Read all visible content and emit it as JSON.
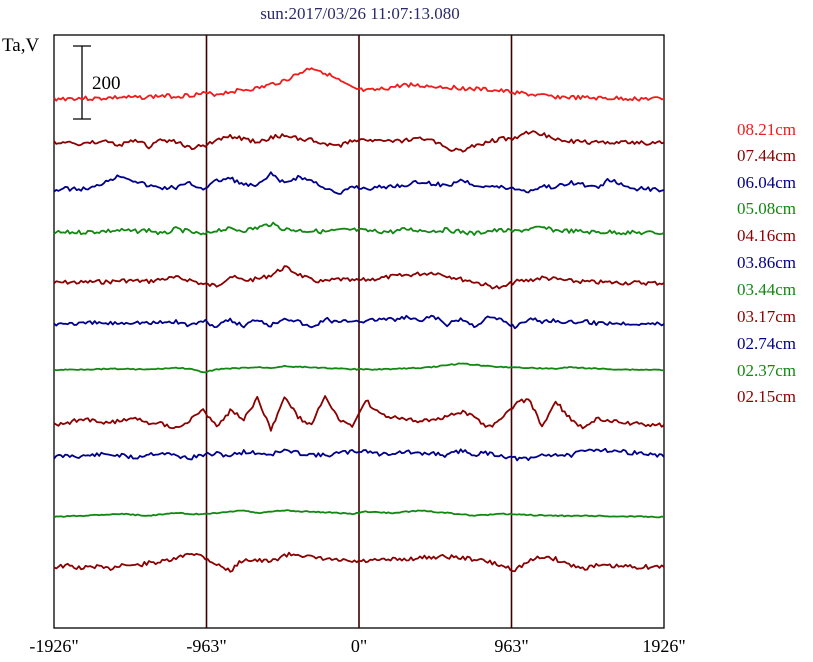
{
  "chart_data": {
    "type": "line",
    "title": "sun:2017/03/26 11:07:13.080",
    "ylabel": "Ta,V",
    "scale_bar_label": "200",
    "scale_bar_value": 200,
    "x_tick_labels": [
      "-1926\"",
      "-963\"",
      "0\"",
      "963\"",
      "1926\""
    ],
    "x_tick_values": [
      -1926,
      -963,
      0,
      963,
      1926
    ],
    "xlim": [
      -1926,
      1926
    ],
    "vertical_marker_lines": [
      -963,
      0,
      963
    ],
    "grid": false,
    "legend_position": "right",
    "series": [
      {
        "name": "08.21cm",
        "color": "#ee1c1c",
        "waveform": "spiky",
        "values": [
          0,
          2,
          3,
          1,
          4,
          6,
          5,
          8,
          12,
          10,
          15,
          20,
          18,
          28,
          35,
          40,
          55,
          70,
          95,
          120,
          100,
          70,
          40,
          30,
          35,
          45,
          55,
          50,
          48,
          45,
          42,
          38,
          35,
          30,
          25,
          18,
          12,
          8,
          6,
          4,
          3,
          2,
          2,
          1,
          1,
          0
        ]
      },
      {
        "name": "07.44cm",
        "color": "#8b0000",
        "waveform": "spiky",
        "values": [
          0,
          1,
          -3,
          2,
          5,
          -8,
          10,
          -15,
          12,
          5,
          -20,
          -10,
          10,
          25,
          15,
          5,
          20,
          30,
          18,
          10,
          -5,
          -12,
          10,
          15,
          8,
          5,
          12,
          18,
          8,
          -20,
          -30,
          -10,
          5,
          15,
          20,
          40,
          35,
          15,
          8,
          5,
          2,
          3,
          1,
          2,
          0,
          1
        ]
      },
      {
        "name": "06.04cm",
        "color": "#00008b",
        "waveform": "spiky",
        "values": [
          0,
          5,
          3,
          10,
          40,
          55,
          35,
          15,
          8,
          10,
          25,
          5,
          35,
          45,
          20,
          15,
          60,
          25,
          50,
          35,
          10,
          -20,
          15,
          5,
          10,
          15,
          20,
          30,
          25,
          15,
          40,
          20,
          15,
          10,
          5,
          -5,
          15,
          10,
          30,
          20,
          10,
          40,
          15,
          5,
          3,
          0
        ]
      },
      {
        "name": "05.08cm",
        "color": "#118811",
        "waveform": "spiky",
        "values": [
          0,
          2,
          3,
          5,
          8,
          10,
          6,
          12,
          -5,
          15,
          5,
          -8,
          12,
          15,
          10,
          20,
          35,
          15,
          10,
          8,
          5,
          10,
          12,
          8,
          6,
          5,
          15,
          10,
          8,
          12,
          5,
          -3,
          8,
          10,
          6,
          15,
          20,
          10,
          8,
          5,
          3,
          4,
          2,
          1,
          1,
          0
        ]
      },
      {
        "name": "04.16cm",
        "color": "#8b0000",
        "waveform": "spiky",
        "values": [
          0,
          3,
          2,
          5,
          4,
          10,
          8,
          6,
          15,
          20,
          12,
          -5,
          -10,
          25,
          10,
          15,
          30,
          60,
          35,
          10,
          5,
          15,
          8,
          12,
          18,
          25,
          30,
          35,
          40,
          28,
          15,
          5,
          -10,
          -20,
          5,
          10,
          20,
          15,
          8,
          5,
          3,
          2,
          1,
          1,
          0,
          0
        ]
      },
      {
        "name": "03.86cm",
        "color": "#00008b",
        "waveform": "spiky",
        "values": [
          0,
          3,
          1,
          4,
          2,
          5,
          8,
          3,
          6,
          10,
          -5,
          12,
          -10,
          15,
          -8,
          20,
          -5,
          25,
          10,
          -15,
          20,
          5,
          15,
          10,
          20,
          15,
          25,
          10,
          30,
          -5,
          20,
          -8,
          25,
          15,
          -10,
          20,
          10,
          15,
          5,
          10,
          3,
          5,
          2,
          3,
          1,
          0
        ]
      },
      {
        "name": "03.44cm",
        "color": "#118811",
        "waveform": "smooth",
        "values": [
          0,
          1,
          2,
          3,
          5,
          4,
          3,
          2,
          5,
          8,
          5,
          -10,
          3,
          5,
          8,
          10,
          8,
          15,
          12,
          10,
          8,
          5,
          3,
          2,
          3,
          4,
          6,
          8,
          12,
          18,
          25,
          20,
          15,
          12,
          10,
          8,
          6,
          5,
          10,
          8,
          5,
          3,
          2,
          1,
          1,
          0
        ]
      },
      {
        "name": "03.17cm",
        "color": "#8b0000",
        "waveform": "spiky",
        "values": [
          0,
          10,
          20,
          15,
          5,
          20,
          25,
          10,
          5,
          -10,
          15,
          60,
          -10,
          55,
          20,
          100,
          -20,
          110,
          30,
          -5,
          115,
          20,
          -10,
          95,
          40,
          30,
          20,
          15,
          25,
          30,
          50,
          35,
          -10,
          20,
          80,
          100,
          -5,
          90,
          30,
          -10,
          25,
          15,
          10,
          5,
          3,
          0
        ]
      },
      {
        "name": "02.74cm",
        "color": "#00008b",
        "waveform": "spiky",
        "values": [
          0,
          5,
          3,
          8,
          10,
          5,
          -3,
          12,
          15,
          5,
          -5,
          8,
          12,
          5,
          20,
          15,
          10,
          25,
          15,
          10,
          5,
          15,
          20,
          25,
          10,
          15,
          20,
          10,
          15,
          5,
          25,
          10,
          15,
          5,
          -5,
          -10,
          8,
          10,
          5,
          20,
          30,
          25,
          20,
          15,
          10,
          0
        ]
      },
      {
        "name": "02.37cm",
        "color": "#118811",
        "waveform": "smooth",
        "values": [
          0,
          3,
          5,
          8,
          10,
          12,
          8,
          5,
          10,
          15,
          12,
          10,
          15,
          20,
          25,
          15,
          20,
          25,
          22,
          20,
          18,
          15,
          12,
          20,
          18,
          15,
          20,
          25,
          20,
          15,
          10,
          5,
          8,
          12,
          10,
          8,
          6,
          5,
          4,
          5,
          4,
          3,
          2,
          2,
          1,
          0
        ]
      },
      {
        "name": "02.15cm",
        "color": "#8b0000",
        "waveform": "spiky",
        "values": [
          0,
          5,
          -5,
          3,
          -8,
          10,
          5,
          15,
          20,
          30,
          55,
          40,
          10,
          -15,
          30,
          25,
          20,
          45,
          50,
          35,
          30,
          25,
          20,
          22,
          25,
          28,
          30,
          35,
          38,
          40,
          35,
          30,
          20,
          5,
          -10,
          20,
          40,
          30,
          10,
          -5,
          5,
          3,
          2,
          1,
          0,
          0
        ]
      }
    ]
  }
}
